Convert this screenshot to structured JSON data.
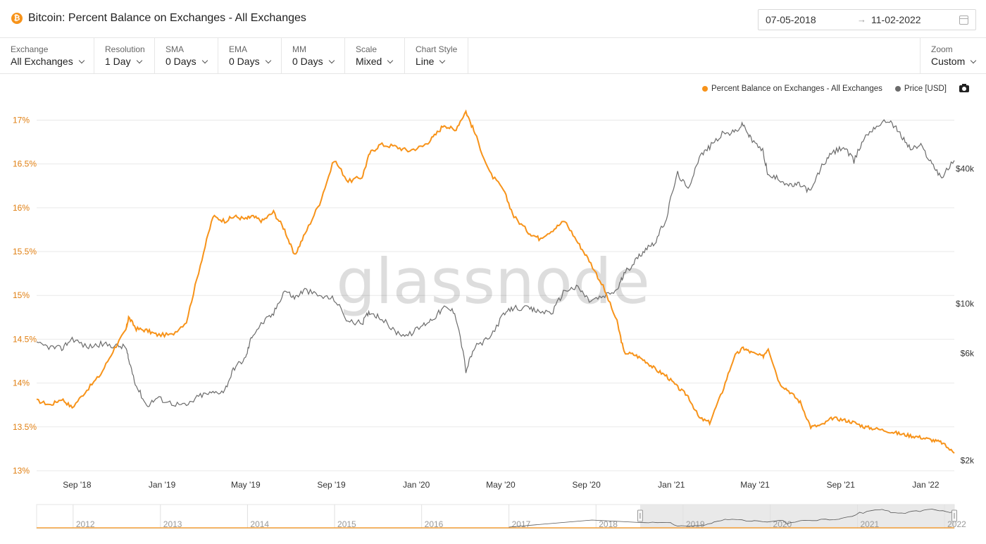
{
  "header": {
    "title": "Bitcoin: Percent Balance on Exchanges - All Exchanges",
    "coin_symbol": "₿",
    "date_start": "07-05-2018",
    "date_arrow": "→",
    "date_end": "11-02-2022"
  },
  "toolbar": {
    "exchange": {
      "label": "Exchange",
      "value": "All Exchanges"
    },
    "resolution": {
      "label": "Resolution",
      "value": "1 Day"
    },
    "sma": {
      "label": "SMA",
      "value": "0 Days"
    },
    "ema": {
      "label": "EMA",
      "value": "0 Days"
    },
    "mm": {
      "label": "MM",
      "value": "0 Days"
    },
    "scale": {
      "label": "Scale",
      "value": "Mixed"
    },
    "chart_style": {
      "label": "Chart Style",
      "value": "Line"
    },
    "zoom": {
      "label": "Zoom",
      "value": "Custom"
    }
  },
  "legend": {
    "series1": "Percent Balance on Exchanges - All Exchanges",
    "series2": "Price [USD]"
  },
  "watermark": "glassnode",
  "colors": {
    "orange": "#f7931a",
    "gray": "#6b6b6b",
    "grid": "#e9e9e9"
  },
  "chart_data": {
    "type": "line",
    "x": [
      "2018-07-05",
      "2018-07-25",
      "2018-08-10",
      "2018-08-25",
      "2018-09-15",
      "2018-10-05",
      "2018-10-25",
      "2018-11-10",
      "2018-11-14",
      "2018-11-25",
      "2018-12-10",
      "2018-12-25",
      "2019-01-15",
      "2019-02-05",
      "2019-02-25",
      "2019-03-15",
      "2019-04-01",
      "2019-04-15",
      "2019-05-01",
      "2019-05-10",
      "2019-05-25",
      "2019-06-10",
      "2019-06-26",
      "2019-07-10",
      "2019-07-25",
      "2019-08-15",
      "2019-09-05",
      "2019-09-25",
      "2019-10-15",
      "2019-10-26",
      "2019-11-10",
      "2019-12-01",
      "2019-12-20",
      "2020-01-10",
      "2020-01-25",
      "2020-02-10",
      "2020-02-25",
      "2020-03-12",
      "2020-03-25",
      "2020-04-15",
      "2020-05-05",
      "2020-05-20",
      "2020-06-10",
      "2020-06-25",
      "2020-07-15",
      "2020-08-01",
      "2020-08-20",
      "2020-09-05",
      "2020-09-25",
      "2020-10-15",
      "2020-10-25",
      "2020-11-10",
      "2020-11-25",
      "2020-12-10",
      "2020-12-25",
      "2021-01-10",
      "2021-01-25",
      "2021-02-10",
      "2021-02-25",
      "2021-03-15",
      "2021-04-01",
      "2021-04-14",
      "2021-04-25",
      "2021-05-12",
      "2021-05-20",
      "2021-06-05",
      "2021-06-20",
      "2021-07-05",
      "2021-07-20",
      "2021-08-05",
      "2021-08-20",
      "2021-09-05",
      "2021-09-20",
      "2021-10-05",
      "2021-10-20",
      "2021-11-10",
      "2021-11-25",
      "2021-12-10",
      "2021-12-25",
      "2022-01-10",
      "2022-01-24",
      "2022-02-11"
    ],
    "series": [
      {
        "name": "Percent Balance on Exchanges - All Exchanges",
        "axis": "left",
        "unit": "%",
        "values": [
          13.8,
          13.75,
          13.82,
          13.72,
          13.92,
          14.1,
          14.4,
          14.6,
          14.75,
          14.62,
          14.6,
          14.55,
          14.55,
          14.7,
          15.35,
          15.9,
          15.85,
          15.9,
          15.87,
          15.9,
          15.85,
          15.95,
          15.75,
          15.45,
          15.7,
          16.05,
          16.55,
          16.3,
          16.35,
          16.62,
          16.72,
          16.7,
          16.65,
          16.7,
          16.8,
          16.95,
          16.88,
          17.1,
          16.85,
          16.4,
          16.2,
          15.9,
          15.72,
          15.65,
          15.75,
          15.85,
          15.6,
          15.4,
          15.1,
          14.7,
          14.35,
          14.32,
          14.25,
          14.15,
          14.08,
          13.95,
          13.85,
          13.6,
          13.55,
          13.9,
          14.3,
          14.4,
          14.35,
          14.3,
          14.4,
          14.0,
          13.9,
          13.78,
          13.5,
          13.52,
          13.6,
          13.58,
          13.55,
          13.5,
          13.48,
          13.45,
          13.42,
          13.4,
          13.38,
          13.35,
          13.32,
          13.2
        ]
      },
      {
        "name": "Price [USD]",
        "axis": "right",
        "unit": "USD",
        "values": [
          6600,
          6400,
          6300,
          7000,
          6400,
          6600,
          6500,
          6400,
          5600,
          4300,
          3500,
          3800,
          3600,
          3500,
          3900,
          4000,
          4100,
          5200,
          5700,
          7200,
          8200,
          9000,
          11500,
          10600,
          11500,
          10800,
          10500,
          8300,
          8200,
          9200,
          8700,
          7500,
          7200,
          8000,
          8600,
          9600,
          9200,
          5000,
          6400,
          7000,
          8900,
          9600,
          9500,
          9200,
          9200,
          11500,
          11800,
          10300,
          10700,
          11500,
          13500,
          15500,
          17600,
          19000,
          24000,
          38000,
          32000,
          45000,
          50000,
          57000,
          58000,
          63000,
          54000,
          48000,
          37000,
          36000,
          33500,
          34000,
          31500,
          41000,
          47000,
          50000,
          43000,
          55000,
          61500,
          66000,
          57000,
          49000,
          50500,
          42000,
          36500,
          43500
        ]
      }
    ],
    "left_ticks": [
      "13%",
      "13.5%",
      "14%",
      "14.5%",
      "15%",
      "15.5%",
      "16%",
      "16.5%",
      "17%"
    ],
    "left_range": [
      13.0,
      17.1
    ],
    "right_scale": "log",
    "right_ticks": [
      {
        "label": "$2k",
        "value": 2000
      },
      {
        "label": "$6k",
        "value": 6000
      },
      {
        "label": "$10k",
        "value": 10000
      },
      {
        "label": "$40k",
        "value": 40000
      }
    ],
    "x_ticks": [
      {
        "label": "Sep '18",
        "date": "2018-09-01"
      },
      {
        "label": "Jan '19",
        "date": "2019-01-01"
      },
      {
        "label": "May '19",
        "date": "2019-05-01"
      },
      {
        "label": "Sep '19",
        "date": "2019-09-01"
      },
      {
        "label": "Jan '20",
        "date": "2020-01-01"
      },
      {
        "label": "May '20",
        "date": "2020-05-01"
      },
      {
        "label": "Sep '20",
        "date": "2020-09-01"
      },
      {
        "label": "Jan '21",
        "date": "2021-01-01"
      },
      {
        "label": "May '21",
        "date": "2021-05-01"
      },
      {
        "label": "Sep '21",
        "date": "2021-09-01"
      },
      {
        "label": "Jan '22",
        "date": "2022-01-01"
      }
    ],
    "x_range": [
      "2018-07-05",
      "2022-02-11"
    ],
    "grid": true,
    "legend_position": "top-right",
    "navigator": {
      "years": [
        "2012",
        "2013",
        "2014",
        "2015",
        "2016",
        "2017",
        "2018",
        "2019",
        "2020",
        "2021",
        "2022"
      ],
      "selected_range": [
        "2018-07-05",
        "2022-02-11"
      ]
    }
  }
}
